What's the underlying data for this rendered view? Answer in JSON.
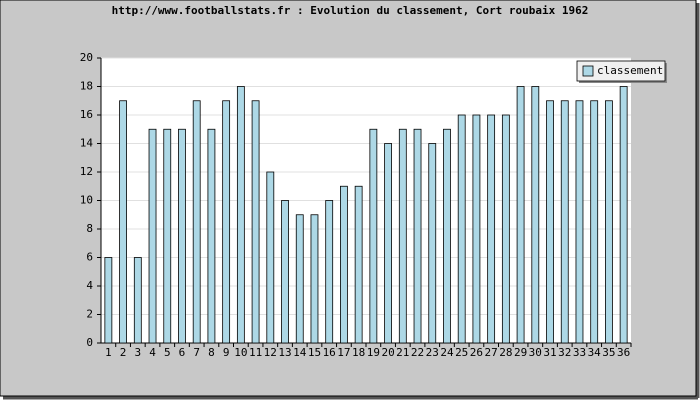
{
  "chart_data": {
    "type": "bar",
    "title": "http://www.footballstats.fr : Evolution du classement, Cort roubaix 1962",
    "categories": [
      "1",
      "2",
      "3",
      "4",
      "5",
      "6",
      "7",
      "8",
      "9",
      "10",
      "11",
      "12",
      "13",
      "14",
      "15",
      "16",
      "17",
      "18",
      "19",
      "20",
      "21",
      "22",
      "23",
      "24",
      "25",
      "26",
      "27",
      "28",
      "29",
      "30",
      "31",
      "32",
      "33",
      "34",
      "35",
      "36"
    ],
    "series": [
      {
        "name": "classement",
        "color": "#add8e6",
        "values": [
          6,
          17,
          6,
          15,
          15,
          15,
          17,
          15,
          17,
          18,
          17,
          12,
          10,
          9,
          9,
          10,
          11,
          11,
          15,
          14,
          15,
          15,
          14,
          15,
          16,
          16,
          16,
          16,
          18,
          18,
          17,
          17,
          17,
          17,
          17,
          18
        ]
      }
    ],
    "ylim": [
      0,
      20
    ],
    "yticks": [
      0,
      2,
      4,
      6,
      8,
      10,
      12,
      14,
      16,
      18,
      20
    ],
    "grid": true,
    "legend": "top-right"
  }
}
